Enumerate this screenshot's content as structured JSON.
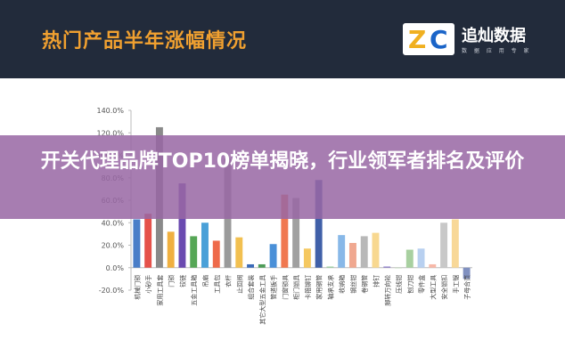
{
  "header": {
    "title": "热门产品半年涨幅情况"
  },
  "logo": {
    "mark_z": "Z",
    "mark_c": "C",
    "name": "追灿数据",
    "subtitle": "数 据 应 用 专 家"
  },
  "overlay": {
    "headline": "开关代理品牌TOP10榜单揭晓，行业领军者排名及评价"
  },
  "chart_data": {
    "type": "bar",
    "ylim": [
      -20,
      140
    ],
    "yticks": [
      "140.0%",
      "120.0%",
      "100.0%",
      "80.0%",
      "60.0%",
      "40.0%",
      "20.0%",
      "0.0%",
      "-20.0%"
    ],
    "categories": [
      "机械门锁",
      "小砂手",
      "家用工具套",
      "门锁",
      "铰链",
      "五金工具箱",
      "吊扇",
      "工具包",
      "衣杆",
      "止回阀",
      "组合套装",
      "其它大型五金工具",
      "管道扳手",
      "门窗锁具",
      "柜门锁具",
      "卡箍铆钉",
      "家用钢管",
      "轴承支承",
      "收纳箱",
      "钢丝钳",
      "卷钢管",
      "排钉",
      "脚转万向轮",
      "压线钳",
      "刨刀钳",
      "零件盒",
      "大型工具",
      "安全锁扣",
      "手工锯",
      "子母合页"
    ],
    "values": [
      43,
      48,
      125,
      32,
      75,
      28,
      40,
      24,
      97,
      27,
      3,
      3,
      21,
      65,
      62,
      17,
      78,
      1,
      29,
      22,
      28,
      31,
      1,
      0,
      16,
      17,
      3,
      40,
      43,
      -10
    ],
    "colors": [
      "#4a7ec8",
      "#e5524b",
      "#8a8a8a",
      "#f0b040",
      "#6a4ab0",
      "#56a656",
      "#4aa0d8",
      "#ee6a4a",
      "#9a9a9a",
      "#f2c050",
      "#3a6ab8",
      "#4e9c58",
      "#4a90d8",
      "#f07850",
      "#a0a0a0",
      "#f5c860",
      "#4060a8",
      "#9ad0a0",
      "#88b8e8",
      "#f0a890",
      "#b8b8b8",
      "#f8d890",
      "#8a7ac8",
      "#b8d8b0",
      "#a8d0a0",
      "#b8d0f0",
      "#f8b8a8",
      "#c8c8c8",
      "#f8d898",
      "#8090c0"
    ]
  }
}
